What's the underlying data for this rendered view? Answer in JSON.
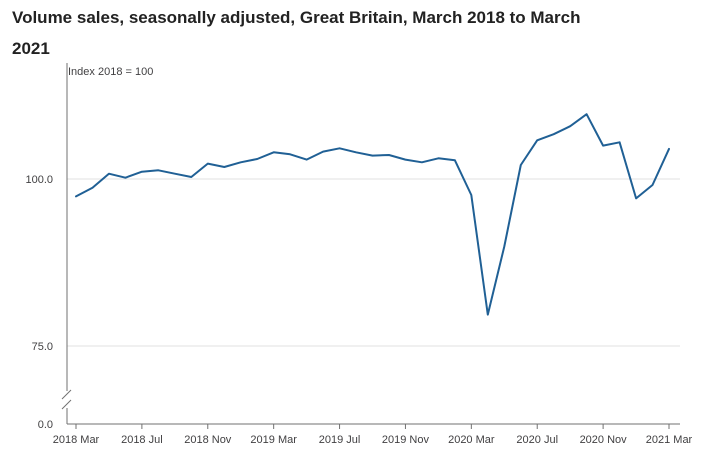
{
  "chart_data": {
    "type": "line",
    "title": "Volume sales, seasonally adjusted, Great Britain, March 2018 to March 2021",
    "ylabel": "Index 2018 = 100",
    "ylim": [
      0,
      100
    ],
    "y_axis_break": true,
    "y_ticks": [
      "0.0",
      "75.0",
      "100.0"
    ],
    "x_tick_labels": [
      "2018 Mar",
      "2018 Jul",
      "2018 Nov",
      "2019 Mar",
      "2019 Jul",
      "2019 Nov",
      "2020 Mar",
      "2020 Jul",
      "2020 Nov",
      "2021 Mar"
    ],
    "grid": "horizontal",
    "line_color": "#206095",
    "series": [
      {
        "name": "",
        "x": [
          "2018 Mar",
          "2018 Apr",
          "2018 May",
          "2018 Jun",
          "2018 Jul",
          "2018 Aug",
          "2018 Sep",
          "2018 Oct",
          "2018 Nov",
          "2018 Dec",
          "2019 Jan",
          "2019 Feb",
          "2019 Mar",
          "2019 Apr",
          "2019 May",
          "2019 Jun",
          "2019 Jul",
          "2019 Aug",
          "2019 Sep",
          "2019 Oct",
          "2019 Nov",
          "2019 Dec",
          "2020 Jan",
          "2020 Feb",
          "2020 Mar",
          "2020 Apr",
          "2020 May",
          "2020 Jun",
          "2020 Jul",
          "2020 Aug",
          "2020 Sep",
          "2020 Oct",
          "2020 Nov",
          "2020 Dec",
          "2021 Jan",
          "2021 Feb",
          "2021 Mar"
        ],
        "values": [
          97.4,
          98.7,
          100.8,
          100.2,
          101.1,
          101.3,
          100.8,
          100.3,
          102.3,
          101.8,
          102.5,
          103.0,
          104.0,
          103.7,
          102.9,
          104.1,
          104.6,
          104.0,
          103.5,
          103.6,
          102.9,
          102.5,
          103.1,
          102.8,
          97.6,
          79.7,
          89.9,
          102.1,
          105.8,
          106.7,
          107.9,
          109.7,
          105.0,
          105.5,
          97.1,
          99.1,
          104.5
        ]
      }
    ]
  }
}
